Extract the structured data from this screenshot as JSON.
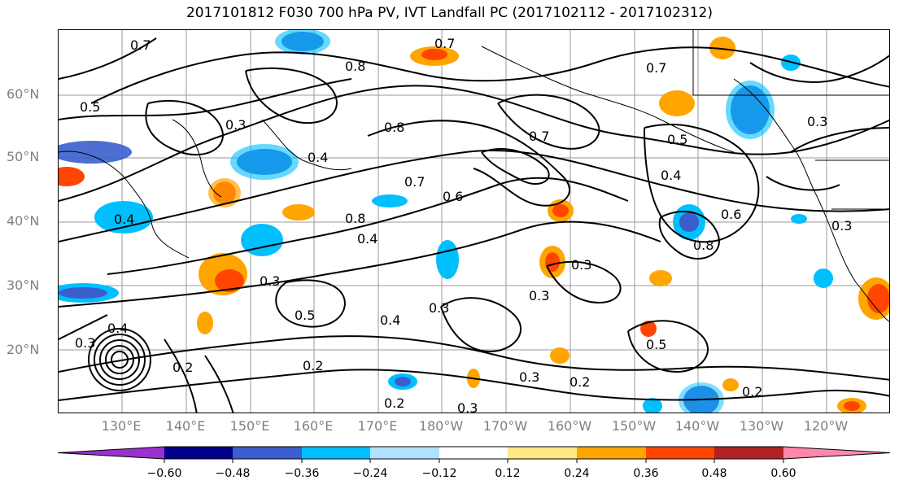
{
  "title": "2017101812 F030 700 hPa PV, IVT Landfall PC (2017102112 - 2017102312)",
  "lat_labels": [
    "60°N",
    "50°N",
    "40°N",
    "30°N",
    "20°N"
  ],
  "lon_labels": [
    "130°E",
    "140°E",
    "150°E",
    "160°E",
    "170°E",
    "180°W",
    "170°W",
    "160°W",
    "150°W",
    "140°W",
    "130°W",
    "120°W"
  ],
  "colorbar": {
    "ticks": [
      "−0.60",
      "−0.48",
      "−0.36",
      "−0.24",
      "−0.12",
      "0.12",
      "0.24",
      "0.36",
      "0.48",
      "0.60"
    ],
    "colors": [
      "#9932cc",
      "#00008b",
      "#3a5fcd",
      "#00bfff",
      "#b0e2ff",
      "#ffffff",
      "#ffe985",
      "#ffa500",
      "#ff4500",
      "#b22222",
      "#ff88aa"
    ]
  },
  "contour_labels": [
    "0.7",
    "0.8",
    "0.5",
    "0.6",
    "0.3",
    "0.4",
    "0.2"
  ]
}
